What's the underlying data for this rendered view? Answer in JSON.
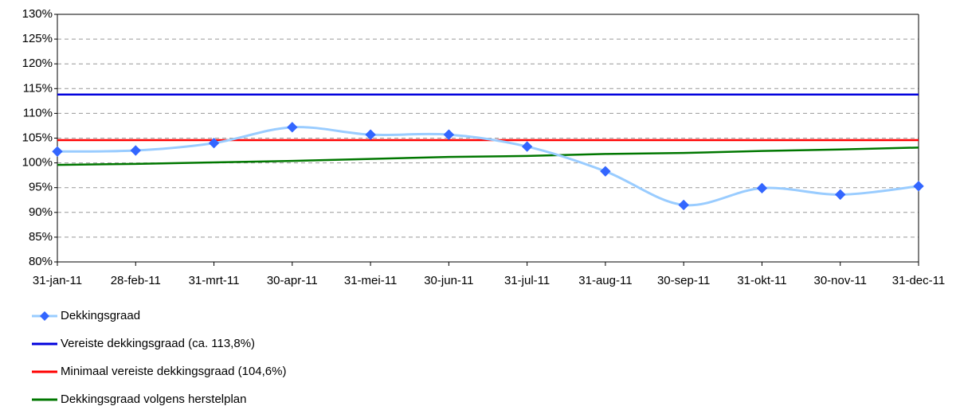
{
  "chart_data": {
    "type": "line",
    "categories": [
      "31-jan-11",
      "28-feb-11",
      "31-mrt-11",
      "30-apr-11",
      "31-mei-11",
      "30-jun-11",
      "31-jul-11",
      "31-aug-11",
      "30-sep-11",
      "31-okt-11",
      "30-nov-11",
      "31-dec-11"
    ],
    "series": [
      {
        "name": "Dekkingsgraad",
        "color": "#99ccff",
        "marker_color": "#3366ff",
        "smooth": true,
        "marker": true,
        "values": [
          102.3,
          102.5,
          104.0,
          107.2,
          105.7,
          105.7,
          103.3,
          98.3,
          91.5,
          94.9,
          93.6,
          95.3
        ]
      },
      {
        "name": "Vereiste dekkingsgraad (ca. 113,8%)",
        "color": "#0000dd",
        "smooth": false,
        "marker": false,
        "values": [
          113.8,
          113.8,
          113.8,
          113.8,
          113.8,
          113.8,
          113.8,
          113.8,
          113.8,
          113.8,
          113.8,
          113.8
        ]
      },
      {
        "name": "Minimaal vereiste dekkingsgraad (104,6%)",
        "color": "#ff0000",
        "smooth": false,
        "marker": false,
        "values": [
          104.6,
          104.6,
          104.6,
          104.6,
          104.6,
          104.6,
          104.6,
          104.6,
          104.6,
          104.6,
          104.6,
          104.6
        ]
      },
      {
        "name": "Dekkingsgraad volgens herstelplan",
        "color": "#007700",
        "smooth": false,
        "marker": false,
        "values": [
          99.6,
          99.8,
          100.1,
          100.4,
          100.8,
          101.2,
          101.4,
          101.8,
          102.0,
          102.4,
          102.7,
          103.1
        ]
      }
    ],
    "ylim": [
      80,
      130
    ],
    "yticks": [
      {
        "value": 80,
        "label": "80%"
      },
      {
        "value": 85,
        "label": "85%"
      },
      {
        "value": 90,
        "label": "90%"
      },
      {
        "value": 95,
        "label": "95%"
      },
      {
        "value": 100,
        "label": "100%"
      },
      {
        "value": 105,
        "label": "105%"
      },
      {
        "value": 110,
        "label": "110%"
      },
      {
        "value": 115,
        "label": "115%"
      },
      {
        "value": 120,
        "label": "120%"
      },
      {
        "value": 125,
        "label": "125%"
      },
      {
        "value": 130,
        "label": "130%"
      }
    ],
    "grid": true,
    "legend": "bottom"
  }
}
